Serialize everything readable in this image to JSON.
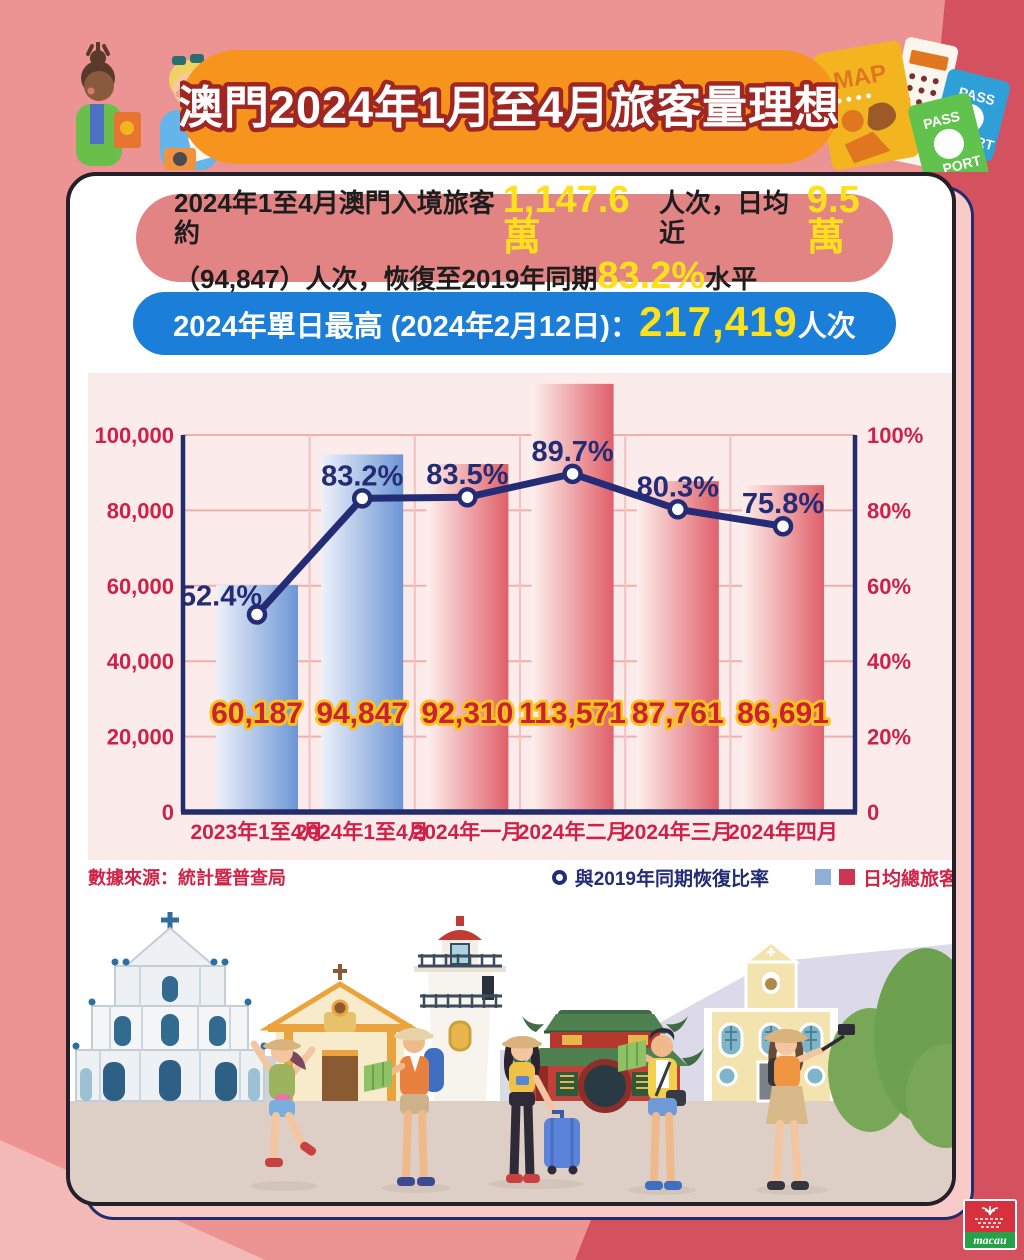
{
  "header": {
    "title": "澳門2024年1月至4月旅客量理想"
  },
  "summary": {
    "l1_b1": "2024年1至4月澳門入境旅客約",
    "l1_y1": "1,147.6萬",
    "l1_b2": "人次，日均近",
    "l1_y2": "9.5萬",
    "l2_b1": "（94,847）人次，恢復至2019年同期",
    "l2_y1": "83.2%",
    "l2_b2": "水平"
  },
  "peak": {
    "prefix": "2024年單日最高 (2024年2月12日)：",
    "value": "217,419",
    "suffix": "人次"
  },
  "footer": {
    "source": "數據來源：統計暨普查局",
    "line_legend": "與2019年同期恢復比率",
    "bar_legend": "日均總旅客"
  },
  "decor": {
    "map": "MAP",
    "pass": "PASS",
    "port": "PORT"
  },
  "logo": {
    "text": "macau"
  },
  "colors": {
    "accent_orange": "#f6941d",
    "banner_red": "#e28384",
    "banner_blue": "#1b7ed8",
    "highlight_yellow": "#ffe01a",
    "navy": "#232c74",
    "crimson": "#ce2049",
    "bar_blue": "#6d96d5",
    "bar_red": "#e05f69",
    "panel_pink": "#fbeceb"
  },
  "chart_data": {
    "type": "bar+line",
    "title": "",
    "categories": [
      "2023年1至4月",
      "2024年1至4月",
      "2024年一月",
      "2024年二月",
      "2024年三月",
      "2024年四月"
    ],
    "bar_series": {
      "name": "日均總旅客",
      "values": [
        60187,
        94847,
        92310,
        113571,
        87761,
        86691
      ],
      "labels": [
        "60,187",
        "94,847",
        "92,310",
        "113,571",
        "87,761",
        "86,691"
      ],
      "colors": [
        "blue",
        "blue",
        "red",
        "red",
        "red",
        "red"
      ]
    },
    "line_series": {
      "name": "與2019年同期恢復比率",
      "values": [
        52.4,
        83.2,
        83.5,
        89.7,
        80.3,
        75.8
      ],
      "labels": [
        "52.4%",
        "83.2%",
        "83.5%",
        "89.7%",
        "80.3%",
        "75.8%"
      ]
    },
    "left_axis": {
      "max": 100000,
      "ticks": [
        "0",
        "20,000",
        "40,000",
        "60,000",
        "80,000",
        "100,000"
      ]
    },
    "right_axis": {
      "max": 100,
      "ticks": [
        "0",
        "20%",
        "40%",
        "60%",
        "80%",
        "100%"
      ]
    },
    "grid": true,
    "legend_position": "bottom-right"
  }
}
